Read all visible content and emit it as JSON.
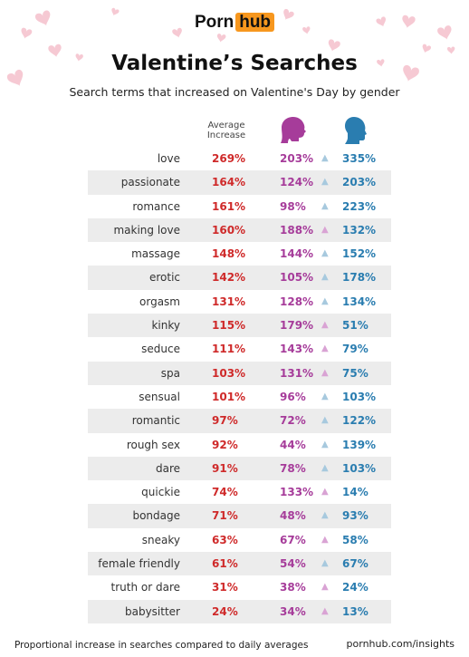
{
  "header": {
    "logo_porn": "Porn",
    "logo_hub": "hub",
    "title": "Valentine’s Searches",
    "subtitle": "Search terms that increased on Valentine's Day by gender"
  },
  "columns": {
    "average": "Average\nIncrease",
    "female_icon": "female-head-icon",
    "male_icon": "male-head-icon"
  },
  "colors": {
    "average": "#cf2a2a",
    "female": "#a63c9a",
    "male": "#2a7db0",
    "triangle_female_higher": "#d9a3d4",
    "triangle_male_higher": "#a7c9de",
    "logo_accent": "#f7971e"
  },
  "chart_data": {
    "type": "table",
    "columns": [
      "term",
      "Average Increase",
      "female",
      "male"
    ],
    "rows": [
      {
        "term": "love",
        "avg": "269%",
        "female": "203%",
        "male": "335%",
        "higher": "male"
      },
      {
        "term": "passionate",
        "avg": "164%",
        "female": "124%",
        "male": "203%",
        "higher": "male"
      },
      {
        "term": "romance",
        "avg": "161%",
        "female": "98%",
        "male": "223%",
        "higher": "male"
      },
      {
        "term": "making love",
        "avg": "160%",
        "female": "188%",
        "male": "132%",
        "higher": "female"
      },
      {
        "term": "massage",
        "avg": "148%",
        "female": "144%",
        "male": "152%",
        "higher": "male"
      },
      {
        "term": "erotic",
        "avg": "142%",
        "female": "105%",
        "male": "178%",
        "higher": "male"
      },
      {
        "term": "orgasm",
        "avg": "131%",
        "female": "128%",
        "male": "134%",
        "higher": "male"
      },
      {
        "term": "kinky",
        "avg": "115%",
        "female": "179%",
        "male": "51%",
        "higher": "female"
      },
      {
        "term": "seduce",
        "avg": "111%",
        "female": "143%",
        "male": "79%",
        "higher": "female"
      },
      {
        "term": "spa",
        "avg": "103%",
        "female": "131%",
        "male": "75%",
        "higher": "female"
      },
      {
        "term": "sensual",
        "avg": "101%",
        "female": "96%",
        "male": "103%",
        "higher": "male"
      },
      {
        "term": "romantic",
        "avg": "97%",
        "female": "72%",
        "male": "122%",
        "higher": "male"
      },
      {
        "term": "rough sex",
        "avg": "92%",
        "female": "44%",
        "male": "139%",
        "higher": "male"
      },
      {
        "term": "dare",
        "avg": "91%",
        "female": "78%",
        "male": "103%",
        "higher": "male"
      },
      {
        "term": "quickie",
        "avg": "74%",
        "female": "133%",
        "male": "14%",
        "higher": "female"
      },
      {
        "term": "bondage",
        "avg": "71%",
        "female": "48%",
        "male": "93%",
        "higher": "male"
      },
      {
        "term": "sneaky",
        "avg": "63%",
        "female": "67%",
        "male": "58%",
        "higher": "female"
      },
      {
        "term": "female friendly",
        "avg": "61%",
        "female": "54%",
        "male": "67%",
        "higher": "male"
      },
      {
        "term": "truth or dare",
        "avg": "31%",
        "female": "38%",
        "male": "24%",
        "higher": "female"
      },
      {
        "term": "babysitter",
        "avg": "24%",
        "female": "34%",
        "male": "13%",
        "higher": "female"
      }
    ]
  },
  "footer": {
    "note": "Proportional increase in searches compared to daily averages",
    "url": "pornhub.com/insights"
  }
}
